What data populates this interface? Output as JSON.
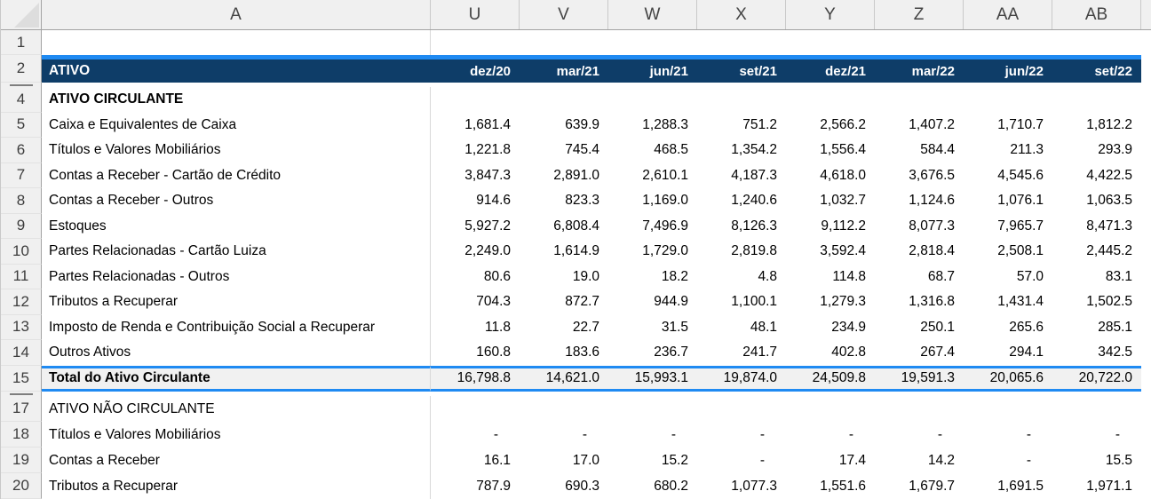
{
  "sheet": {
    "columns": [
      "A",
      "U",
      "V",
      "W",
      "X",
      "Y",
      "Z",
      "AA",
      "AB"
    ],
    "colors": {
      "header_navy": "#0e3d68",
      "accent_blue": "#1f8af2",
      "total_row_fill": "#f1f1f1",
      "chrome_gray": "#f0f0f0"
    },
    "rows": [
      {
        "num": "1",
        "type": "blank",
        "label": "",
        "values": [
          "",
          "",
          "",
          "",
          "",
          "",
          "",
          ""
        ]
      },
      {
        "num": "2",
        "type": "header",
        "label": "ATIVO",
        "values": [
          "dez/20",
          "mar/21",
          "jun/21",
          "set/21",
          "dez/21",
          "mar/22",
          "jun/22",
          "set/22"
        ]
      },
      {
        "num": "",
        "type": "hidden",
        "label": "",
        "values": [
          "",
          "",
          "",
          "",
          "",
          "",
          "",
          ""
        ]
      },
      {
        "num": "4",
        "type": "section",
        "label": "ATIVO CIRCULANTE",
        "values": [
          "",
          "",
          "",
          "",
          "",
          "",
          "",
          ""
        ]
      },
      {
        "num": "5",
        "type": "data",
        "label": "Caixa e Equivalentes de Caixa",
        "values": [
          "1,681.4",
          "639.9",
          "1,288.3",
          "751.2",
          "2,566.2",
          "1,407.2",
          "1,710.7",
          "1,812.2"
        ]
      },
      {
        "num": "6",
        "type": "data",
        "label": "Títulos e Valores Mobiliários",
        "values": [
          "1,221.8",
          "745.4",
          "468.5",
          "1,354.2",
          "1,556.4",
          "584.4",
          "211.3",
          "293.9"
        ]
      },
      {
        "num": "7",
        "type": "data",
        "label": "Contas a Receber - Cartão de Crédito",
        "values": [
          "3,847.3",
          "2,891.0",
          "2,610.1",
          "4,187.3",
          "4,618.0",
          "3,676.5",
          "4,545.6",
          "4,422.5"
        ]
      },
      {
        "num": "8",
        "type": "data",
        "label": "Contas a Receber - Outros",
        "values": [
          "914.6",
          "823.3",
          "1,169.0",
          "1,240.6",
          "1,032.7",
          "1,124.6",
          "1,076.1",
          "1,063.5"
        ]
      },
      {
        "num": "9",
        "type": "data",
        "label": "Estoques",
        "values": [
          "5,927.2",
          "6,808.4",
          "7,496.9",
          "8,126.3",
          "9,112.2",
          "8,077.3",
          "7,965.7",
          "8,471.3"
        ]
      },
      {
        "num": "10",
        "type": "data",
        "label": "Partes Relacionadas - Cartão Luiza",
        "values": [
          "2,249.0",
          "1,614.9",
          "1,729.0",
          "2,819.8",
          "3,592.4",
          "2,818.4",
          "2,508.1",
          "2,445.2"
        ]
      },
      {
        "num": "11",
        "type": "data",
        "label": "Partes Relacionadas - Outros",
        "values": [
          "80.6",
          "19.0",
          "18.2",
          "4.8",
          "114.8",
          "68.7",
          "57.0",
          "83.1"
        ]
      },
      {
        "num": "12",
        "type": "data",
        "label": "Tributos a Recuperar",
        "values": [
          "704.3",
          "872.7",
          "944.9",
          "1,100.1",
          "1,279.3",
          "1,316.8",
          "1,431.4",
          "1,502.5"
        ]
      },
      {
        "num": "13",
        "type": "data",
        "label": "Imposto de Renda e Contribuição Social a Recuperar",
        "values": [
          "11.8",
          "22.7",
          "31.5",
          "48.1",
          "234.9",
          "250.1",
          "265.6",
          "285.1"
        ]
      },
      {
        "num": "14",
        "type": "data",
        "label": "Outros Ativos",
        "values": [
          "160.8",
          "183.6",
          "236.7",
          "241.7",
          "402.8",
          "267.4",
          "294.1",
          "342.5"
        ]
      },
      {
        "num": "15",
        "type": "total",
        "label": "Total do Ativo Circulante",
        "values": [
          "16,798.8",
          "14,621.0",
          "15,993.1",
          "19,874.0",
          "24,509.8",
          "19,591.3",
          "20,065.6",
          "20,722.0"
        ]
      },
      {
        "num": "",
        "type": "hidden",
        "label": "",
        "values": [
          "",
          "",
          "",
          "",
          "",
          "",
          "",
          ""
        ]
      },
      {
        "num": "17",
        "type": "section17",
        "label": "ATIVO NÃO CIRCULANTE",
        "values": [
          "",
          "",
          "",
          "",
          "",
          "",
          "",
          ""
        ]
      },
      {
        "num": "18",
        "type": "data17",
        "label": "Títulos e Valores Mobiliários",
        "values": [
          "-",
          "-",
          "-",
          "-",
          "-",
          "-",
          "-",
          "-"
        ]
      },
      {
        "num": "19",
        "type": "data17",
        "label": "Contas a Receber",
        "values": [
          "16.1",
          "17.0",
          "15.2",
          "-",
          "17.4",
          "14.2",
          "-",
          "15.5"
        ]
      },
      {
        "num": "20",
        "type": "data17",
        "label": "Tributos a Recuperar",
        "values": [
          "787.9",
          "690.3",
          "680.2",
          "1,077.3",
          "1,551.6",
          "1,679.7",
          "1,691.5",
          "1,971.1"
        ]
      }
    ]
  }
}
